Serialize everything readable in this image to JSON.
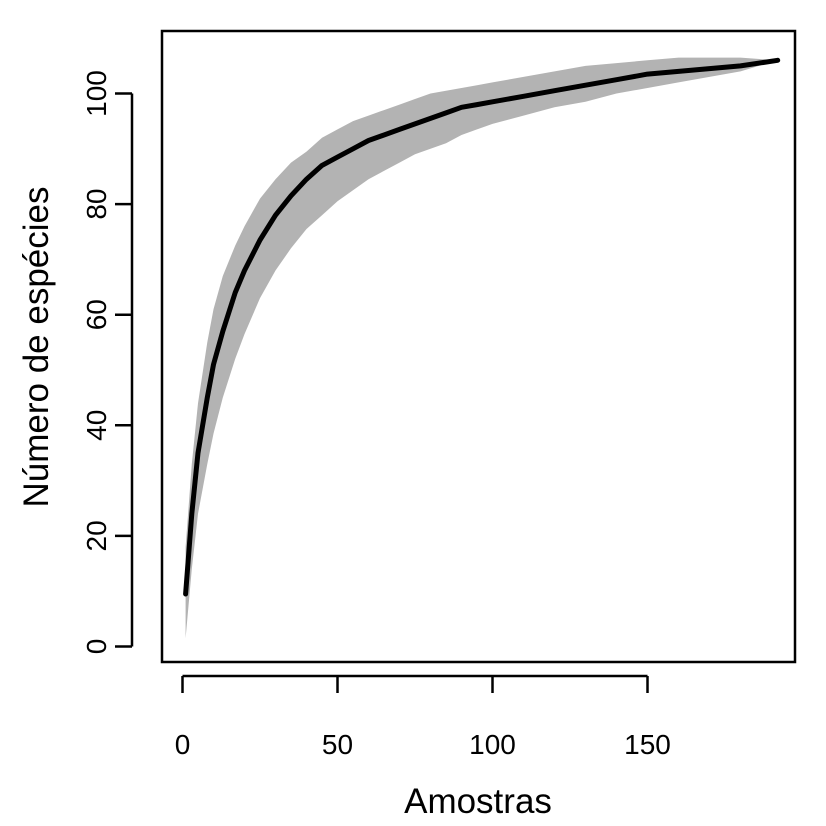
{
  "chart_data": {
    "type": "area",
    "title": "",
    "xlabel": "Amostras",
    "ylabel": "Número de espécies",
    "xlim": [
      1,
      192
    ],
    "ylim": [
      0,
      106
    ],
    "x_ticks": [
      "0",
      "50",
      "100",
      "150"
    ],
    "y_ticks": [
      "0",
      "20",
      "40",
      "60",
      "80",
      "100"
    ],
    "grid": false,
    "legend": "none",
    "series": [
      {
        "type": "line",
        "x": [
          1,
          3,
          5,
          8,
          10,
          13,
          17,
          20,
          25,
          30,
          35,
          40,
          45,
          50,
          55,
          60,
          65,
          70,
          75,
          80,
          85,
          90,
          95,
          100,
          110,
          120,
          130,
          140,
          150,
          160,
          170,
          180,
          192
        ],
        "y": [
          9.5,
          24,
          35,
          45,
          51,
          57,
          64,
          68,
          73.5,
          78,
          81.5,
          84.5,
          87,
          88.5,
          90,
          91.5,
          92.5,
          93.5,
          94.5,
          95.5,
          96.5,
          97.5,
          98,
          98.5,
          99.5,
          100.5,
          101.5,
          102.5,
          103.5,
          104,
          104.5,
          105,
          106
        ]
      },
      {
        "type": "band",
        "x": [
          1,
          3,
          5,
          8,
          10,
          13,
          17,
          20,
          25,
          30,
          35,
          40,
          45,
          50,
          55,
          60,
          65,
          70,
          75,
          80,
          85,
          90,
          95,
          100,
          110,
          120,
          130,
          140,
          150,
          160,
          170,
          180,
          192
        ],
        "upper": [
          18,
          33,
          44,
          55,
          61,
          67,
          72.5,
          76,
          81,
          84.5,
          87.5,
          89.5,
          92,
          93.5,
          95,
          96,
          97,
          98,
          99,
          100,
          100.5,
          101,
          101.5,
          102,
          103,
          104,
          105,
          105.5,
          106,
          106.5,
          106.5,
          106.5,
          106
        ],
        "lower": [
          1.5,
          14,
          24,
          33,
          38.5,
          45,
          52,
          56.5,
          63,
          68,
          72,
          75.5,
          78,
          80.5,
          82.5,
          84.5,
          86,
          87.5,
          89,
          90,
          91,
          92.5,
          93.5,
          94.5,
          96,
          97.5,
          98.5,
          100,
          101,
          102,
          103,
          104,
          106
        ]
      }
    ],
    "colors": {
      "line": "#000000",
      "band": "#b3b3b3"
    }
  }
}
